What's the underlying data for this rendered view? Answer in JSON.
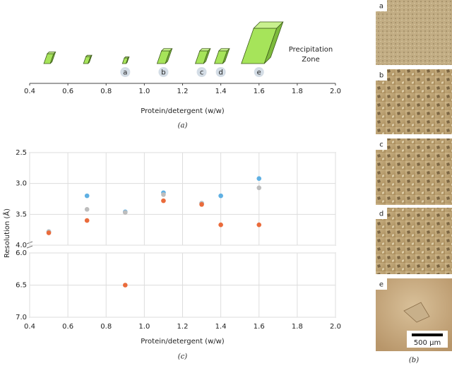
{
  "chart_data": [
    {
      "type": "crystal-size",
      "xlabel": "Protein/detergent (w/w)",
      "caption": "(a)",
      "annotation": [
        "Precipitation",
        "Zone"
      ],
      "xlim": [
        0.4,
        2.0
      ],
      "xticks": [
        0.4,
        0.6,
        0.8,
        {
          "value": 1,
          "label": "1.0"
        },
        1.2,
        1.4,
        1.6,
        1.8,
        {
          "value": 2,
          "label": "2.0"
        }
      ],
      "x": [
        0.5,
        0.7,
        0.9,
        1.1,
        1.3,
        1.4,
        1.6
      ],
      "values": [
        1.4,
        1,
        0.8,
        1.8,
        1.8,
        1.8,
        5
      ],
      "labels": [
        null,
        null,
        "a",
        "b",
        "c",
        "d",
        "e"
      ],
      "color": "#a6e45a"
    },
    {
      "type": "scatter",
      "xlabel": "Protein/detergent (w/w)",
      "ylabel": "Resolution (Å)",
      "caption": "(c)",
      "xlim": [
        0.4,
        2.0
      ],
      "xticks": [
        0.4,
        0.6,
        0.8,
        {
          "value": 1,
          "label": "1.0"
        },
        1.2,
        1.4,
        1.6,
        1.8,
        {
          "value": 2,
          "label": "2.0"
        }
      ],
      "ylim_segments": [
        [
          4.0,
          2.5
        ],
        [
          7.0,
          6.0
        ]
      ],
      "yticks": [
        2.5,
        {
          "value": 3,
          "label": "3.0"
        },
        3.5,
        {
          "value": 4,
          "label": "4.0"
        },
        {
          "value": 6,
          "label": "6.0"
        },
        6.5,
        {
          "value": 7,
          "label": "7.0"
        }
      ],
      "grid": true,
      "x": [
        0.5,
        0.7,
        0.9,
        1.1,
        1.3,
        1.4,
        1.6
      ],
      "series": [
        {
          "color": "#5fb0e3",
          "values": [
            3.78,
            3.2,
            3.46,
            3.15,
            3.32,
            3.2,
            2.92
          ]
        },
        {
          "color": "#bdbdbd",
          "values": [
            3.78,
            3.42,
            3.47,
            3.18,
            3.32,
            null,
            3.07
          ]
        },
        {
          "color": "#ea6b3b",
          "values": [
            3.8,
            3.6,
            6.5,
            3.28,
            3.34,
            3.67,
            3.67
          ]
        }
      ]
    },
    {
      "type": "image-panel",
      "caption": "(b)",
      "labels": [
        "a",
        "b",
        "c",
        "d",
        "e"
      ],
      "scale_bar": "500 µm"
    }
  ]
}
